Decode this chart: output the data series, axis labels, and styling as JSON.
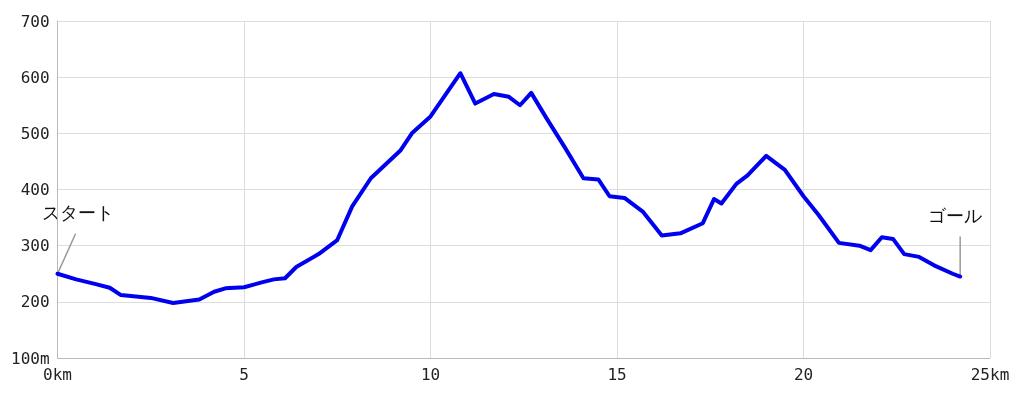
{
  "chart_data": {
    "type": "line",
    "x": [
      0,
      0.5,
      1.0,
      1.4,
      1.7,
      2.5,
      3.1,
      3.8,
      4.2,
      4.5,
      5.0,
      5.5,
      5.8,
      6.1,
      6.4,
      7.0,
      7.5,
      7.9,
      8.4,
      9.2,
      9.5,
      10.0,
      10.8,
      11.2,
      11.7,
      12.1,
      12.4,
      12.7,
      13.1,
      13.6,
      14.1,
      14.5,
      14.8,
      15.2,
      15.7,
      16.2,
      16.7,
      17.3,
      17.6,
      17.8,
      18.2,
      18.5,
      19.0,
      19.5,
      20.0,
      20.4,
      20.95,
      21.5,
      21.8,
      22.1,
      22.4,
      22.7,
      23.1,
      23.5,
      24.0,
      24.2
    ],
    "series": [
      {
        "color": "#0000ee",
        "values": [
          250,
          240,
          232,
          225,
          212,
          207,
          198,
          204,
          218,
          224,
          226,
          235,
          240,
          242,
          262,
          285,
          310,
          370,
          420,
          470,
          500,
          530,
          607,
          553,
          570,
          565,
          550,
          572,
          528,
          475,
          420,
          418,
          388,
          385,
          360,
          318,
          322,
          340,
          383,
          375,
          410,
          425,
          460,
          435,
          388,
          355,
          305,
          300,
          292,
          315,
          312,
          285,
          280,
          265,
          250,
          245
        ]
      }
    ],
    "xlim": [
      0,
      25
    ],
    "xticks": [
      {
        "value": 0,
        "label": "0km"
      },
      5,
      10,
      15,
      20,
      {
        "value": 25,
        "label": "25km"
      }
    ],
    "ylim": [
      100,
      700
    ],
    "yticks": [
      {
        "value": 100,
        "label": "100m"
      },
      200,
      300,
      400,
      500,
      600,
      700
    ],
    "grid": true,
    "marker": "none",
    "line_style": "solid",
    "annotations": [
      {
        "text": "スタート",
        "x": 0,
        "y": 250
      },
      {
        "text": "ゴール",
        "x": 24.2,
        "y": 245
      }
    ]
  }
}
